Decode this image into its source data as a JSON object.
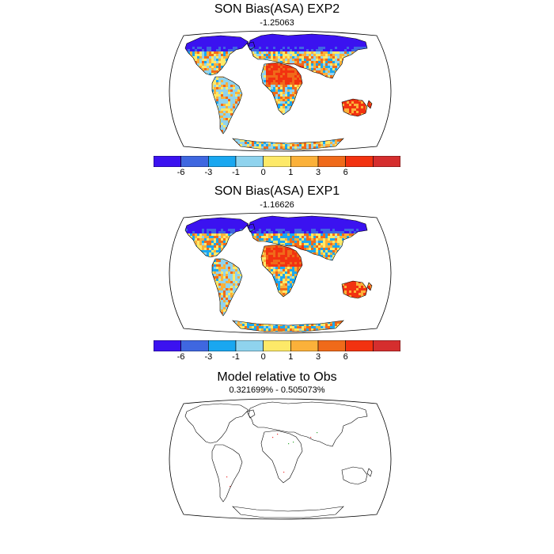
{
  "panels": [
    {
      "title": "SON Bias(ASA) EXP2",
      "subtitle": "-1.25063"
    },
    {
      "title": "SON Bias(ASA) EXP1",
      "subtitle": "-1.16626"
    },
    {
      "title": "Model relative to Obs",
      "subtitle": "0.321699% - 0.505073%"
    }
  ],
  "colorbar": {
    "colors": [
      "#3b12f0",
      "#3f67e0",
      "#1aa7f0",
      "#8fd3ee",
      "#fde968",
      "#fbb13a",
      "#f06a1a",
      "#f23210",
      "#d52e2e"
    ],
    "labels": [
      "-6",
      "-3",
      "-1",
      "0",
      "1",
      "3",
      "6"
    ]
  }
}
